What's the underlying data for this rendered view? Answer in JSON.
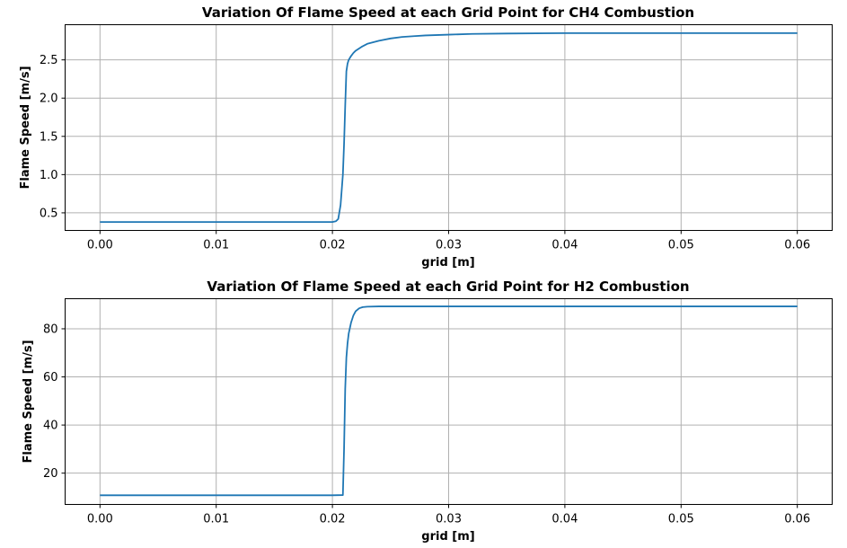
{
  "figure": {
    "line_color": "#1f77b4",
    "grid": true
  },
  "chart_data": [
    {
      "type": "line",
      "title": "Variation Of Flame Speed at each Grid Point for CH4 Combustion",
      "xlabel": "grid [m]",
      "ylabel": "Flame Speed [m/s]",
      "xlim": [
        -0.003,
        0.063
      ],
      "ylim": [
        0.27,
        2.96
      ],
      "xticks": [
        0.0,
        0.01,
        0.02,
        0.03,
        0.04,
        0.05,
        0.06
      ],
      "xtick_labels": [
        "0.00",
        "0.01",
        "0.02",
        "0.03",
        "0.04",
        "0.05",
        "0.06"
      ],
      "yticks": [
        0.5,
        1.0,
        1.5,
        2.0,
        2.5
      ],
      "ytick_labels": [
        "0.5",
        "1.0",
        "1.5",
        "2.0",
        "2.5"
      ],
      "series": [
        {
          "x": [
            0.0,
            0.005,
            0.01,
            0.015,
            0.02,
            0.0203,
            0.0205,
            0.0207,
            0.0209,
            0.021,
            0.0211,
            0.0212,
            0.0213,
            0.0214,
            0.0216,
            0.0218,
            0.022,
            0.0225,
            0.023,
            0.024,
            0.025,
            0.026,
            0.027,
            0.028,
            0.03,
            0.032,
            0.035,
            0.04,
            0.045,
            0.05,
            0.055,
            0.06
          ],
          "y": [
            0.38,
            0.38,
            0.38,
            0.38,
            0.38,
            0.39,
            0.42,
            0.6,
            1.0,
            1.4,
            1.9,
            2.35,
            2.45,
            2.5,
            2.55,
            2.59,
            2.62,
            2.67,
            2.71,
            2.75,
            2.78,
            2.8,
            2.81,
            2.82,
            2.83,
            2.84,
            2.845,
            2.85,
            2.85,
            2.85,
            2.85,
            2.85
          ]
        }
      ]
    },
    {
      "type": "line",
      "title": "Variation Of Flame Speed at each Grid Point for H2 Combustion",
      "xlabel": "grid [m]",
      "ylabel": "Flame Speed [m/s]",
      "xlim": [
        -0.003,
        0.063
      ],
      "ylim": [
        7.0,
        92.5
      ],
      "xticks": [
        0.0,
        0.01,
        0.02,
        0.03,
        0.04,
        0.05,
        0.06
      ],
      "xtick_labels": [
        "0.00",
        "0.01",
        "0.02",
        "0.03",
        "0.04",
        "0.05",
        "0.06"
      ],
      "yticks": [
        20,
        40,
        60,
        80
      ],
      "ytick_labels": [
        "20",
        "40",
        "60",
        "80"
      ],
      "series": [
        {
          "x": [
            0.0,
            0.005,
            0.01,
            0.015,
            0.02,
            0.0209,
            0.021,
            0.0211,
            0.0212,
            0.0213,
            0.0214,
            0.0216,
            0.0218,
            0.022,
            0.0223,
            0.0226,
            0.023,
            0.024,
            0.025,
            0.03,
            0.04,
            0.05,
            0.06
          ],
          "y": [
            10.8,
            10.8,
            10.8,
            10.8,
            10.8,
            10.9,
            30.0,
            55.0,
            68.0,
            74.0,
            78.0,
            82.5,
            85.5,
            87.3,
            88.5,
            89.0,
            89.2,
            89.3,
            89.3,
            89.3,
            89.3,
            89.3,
            89.3
          ]
        }
      ]
    }
  ]
}
